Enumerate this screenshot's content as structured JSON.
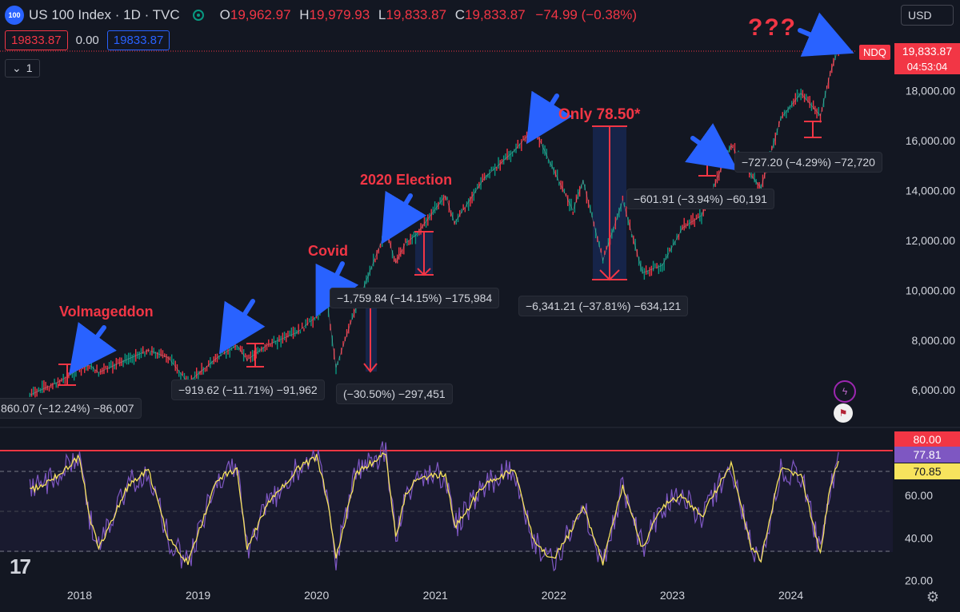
{
  "header": {
    "symbol_badge": "100",
    "title": "US 100 Index · 1D · TVC",
    "ohlc": [
      {
        "k": "O",
        "v": "19,962.97"
      },
      {
        "k": "H",
        "v": "19,979.93"
      },
      {
        "k": "L",
        "v": "19,833.87"
      },
      {
        "k": "C",
        "v": "19,833.87"
      }
    ],
    "change": "−74.99 (−0.38%)",
    "bid": "19833.87",
    "spread": "0.00",
    "ask": "19833.87",
    "collapse_count": "1",
    "currency": "USD"
  },
  "price_axis": {
    "ticks": [
      "6,000.00",
      "8,000.00",
      "10,000.00",
      "12,000.00",
      "14,000.00",
      "16,000.00",
      "18,000.00"
    ],
    "last_price": "19,833.87",
    "countdown": "04:53:04",
    "symbol_tag": "NDQ"
  },
  "rsi_axis": {
    "ticks": [
      "20.00",
      "40.00",
      "60.00"
    ],
    "upper": "80.00",
    "rsi_value": "77.81",
    "ma_value": "70.85"
  },
  "x_axis": {
    "ticks": [
      "2018",
      "2019",
      "2020",
      "2021",
      "2022",
      "2023",
      "2024"
    ]
  },
  "annotations": {
    "volmageddon": "Volmageddon",
    "covid": "Covid",
    "election": "2020 Election",
    "only": "Only 78.50*",
    "question": "???"
  },
  "measurements": [
    "860.07 (−12.24%) −86,007",
    "−919.62 (−11.71%) −91,962",
    "(−30.50%) −297,451",
    "−1,759.84 (−14.15%) −175,984",
    "−6,341.21 (−37.81%) −634,121",
    "−601.91 (−3.94%) −60,191",
    "−727.20 (−4.29%) −72,720"
  ],
  "colors": {
    "background": "#131722",
    "price_line": "#f23645",
    "candle_up": "#089981",
    "candle_down": "#f23645",
    "rsi_line": "#7e57c2",
    "rsi_ma": "#f7e35d",
    "annotation": "#f23645",
    "arrow": "#2962ff"
  },
  "chart_data": [
    {
      "type": "line",
      "title": "US 100 Index · 1D · TVC",
      "x": [
        "2017-08",
        "2017-11",
        "2018-01",
        "2018-02",
        "2018-03",
        "2018-06",
        "2018-08",
        "2018-10",
        "2018-12",
        "2019-03",
        "2019-05",
        "2019-06",
        "2019-08",
        "2019-11",
        "2020-01",
        "2020-02",
        "2020-03",
        "2020-05",
        "2020-08",
        "2020-09",
        "2020-10",
        "2020-11",
        "2021-02",
        "2021-03",
        "2021-06",
        "2021-09",
        "2021-11",
        "2022-01",
        "2022-03",
        "2022-04",
        "2022-06",
        "2022-08",
        "2022-10",
        "2022-12",
        "2023-02",
        "2023-04",
        "2023-07",
        "2023-09",
        "2023-10",
        "2023-12",
        "2024-02",
        "2024-04",
        "2024-05",
        "2024-06"
      ],
      "series": [
        {
          "values": [
            5800,
            6350,
            6850,
            7000,
            6700,
            7250,
            7600,
            7300,
            6300,
            7300,
            7800,
            7200,
            7800,
            8300,
            8950,
            9700,
            6900,
            9300,
            12400,
            11100,
            11900,
            12200,
            13800,
            12700,
            14500,
            15600,
            16500,
            14800,
            13200,
            14400,
            11200,
            13600,
            10700,
            11000,
            12500,
            13000,
            15800,
            14600,
            14100,
            16900,
            17900,
            17000,
            18700,
            19900
          ]
        }
      ],
      "xlabel": "",
      "ylabel": "",
      "ylim": [
        4500,
        21000
      ],
      "grid": false,
      "legend": "top-left"
    },
    {
      "type": "line",
      "series": [
        {
          "values": [
            62,
            70,
            78,
            50,
            35,
            65,
            72,
            40,
            28,
            68,
            72,
            35,
            55,
            72,
            78,
            60,
            30,
            70,
            80,
            40,
            60,
            68,
            70,
            45,
            65,
            72,
            38,
            30,
            45,
            55,
            28,
            65,
            35,
            55,
            60,
            50,
            75,
            35,
            30,
            72,
            70,
            32,
            65,
            78
          ]
        }
      ],
      "ylim": [
        15,
        90
      ],
      "reference_lines": [
        80,
        70,
        50,
        30
      ],
      "grid": false
    }
  ]
}
